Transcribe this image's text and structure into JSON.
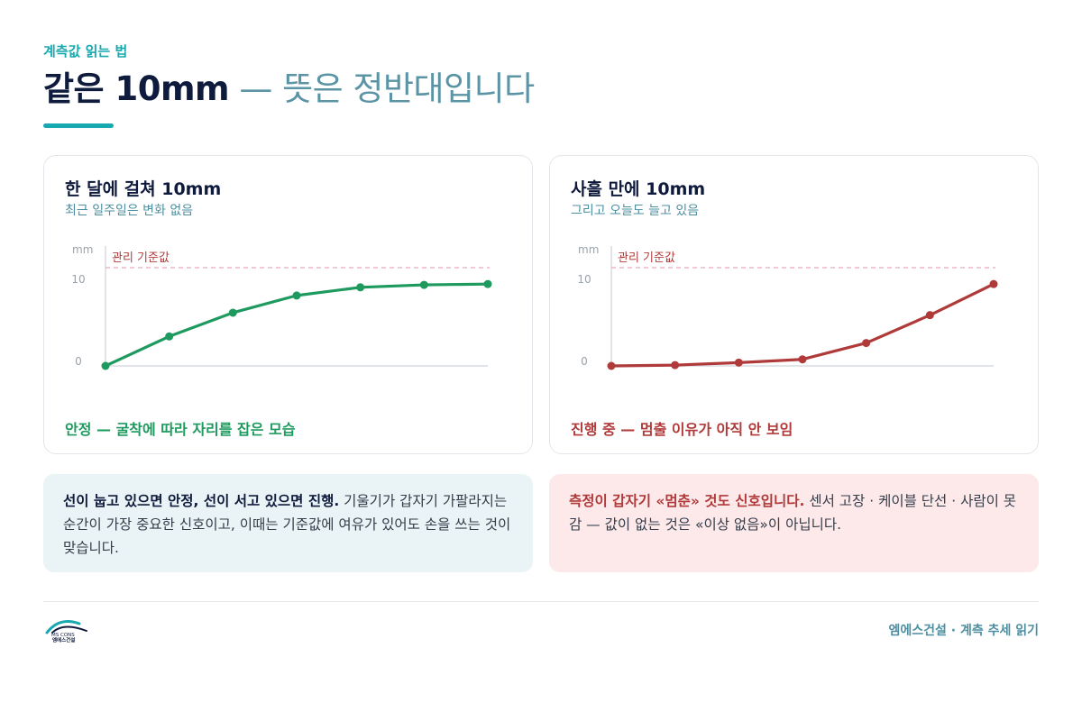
{
  "header": {
    "eyebrow": "계측값 읽는 법",
    "title_strong": "같은 10mm",
    "title_soft": " — 뜻은 정반대입니다"
  },
  "colors": {
    "accent": "#17a9b0",
    "stable": "#1e9a5f",
    "danger": "#b03a3a"
  },
  "cards": {
    "left": {
      "title": "한 달에 걸쳐 10mm",
      "subtitle": "최근 일주일은 변화 없음",
      "verdict": "안정 — 굴착에 따라 자리를 잡은 모습"
    },
    "right": {
      "title": "사흘 만에 10mm",
      "subtitle": "그리고 오늘도 늘고 있음",
      "verdict": "진행 중 — 멈출 이유가 아직 안 보임"
    }
  },
  "chart_data": [
    {
      "type": "line",
      "ylabel": "mm",
      "yticks": [
        0,
        10
      ],
      "ylim": [
        0,
        12
      ],
      "reference": {
        "label": "관리 기준값",
        "value": 12
      },
      "x": [
        1,
        2,
        3,
        4,
        5,
        6,
        7
      ],
      "series": [
        {
          "values": [
            0,
            3.6,
            6.5,
            8.6,
            9.6,
            9.9,
            10.0
          ],
          "color": "#1e9a5f"
        }
      ]
    },
    {
      "type": "line",
      "ylabel": "mm",
      "yticks": [
        0,
        10
      ],
      "ylim": [
        0,
        12
      ],
      "reference": {
        "label": "관리 기준값",
        "value": 12
      },
      "x": [
        1,
        2,
        3,
        4,
        5,
        6,
        7
      ],
      "series": [
        {
          "values": [
            0,
            0.1,
            0.4,
            0.8,
            2.8,
            6.2,
            10.0
          ],
          "color": "#b03a3a"
        }
      ]
    }
  ],
  "notes": {
    "left": {
      "lead": "선이 눕고 있으면 안정, 선이 서고 있으면 진행.",
      "body": " 기울기가 갑자기 가팔라지는 순간이 가장 중요한 신호이고, 이때는 기준값에 여유가 있어도 손을 쓰는 것이 맞습니다."
    },
    "right": {
      "lead": "측정이 갑자기 «멈춘» 것도 신호입니다.",
      "body": " 센서 고장 · 케이블 단선 · 사람이 못 감 — 값이 없는 것은 «이상 없음»이 아닙니다."
    }
  },
  "footer": {
    "text": "엠에스건설 · 계측 추세 읽기",
    "logo_text": "MS CONS",
    "logo_text_kr": "엠에스건설"
  }
}
